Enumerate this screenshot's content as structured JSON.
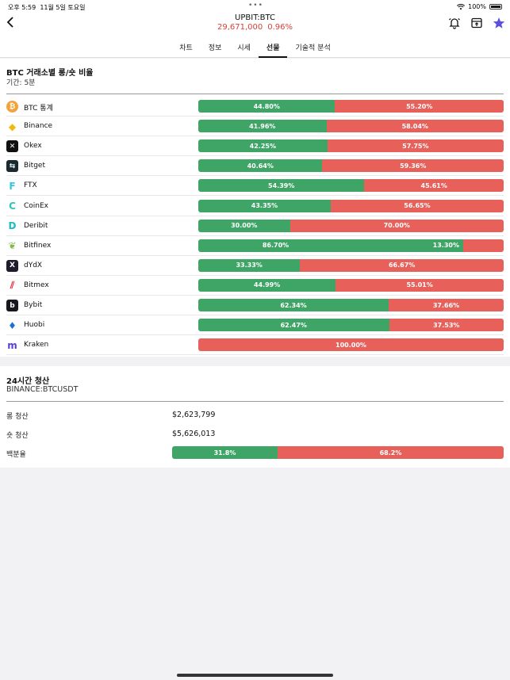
{
  "status_bar": {
    "time": "오후 5:59",
    "date": "11월 5일 토요일",
    "dots": "•••",
    "battery": "100%"
  },
  "header": {
    "title": "UPBIT:BTC",
    "price": "29,671,000",
    "change": "0.96%"
  },
  "tabs": [
    {
      "label": "차트",
      "active": false
    },
    {
      "label": "정보",
      "active": false
    },
    {
      "label": "시세",
      "active": false
    },
    {
      "label": "선물",
      "active": true
    },
    {
      "label": "기술적 분석",
      "active": false
    }
  ],
  "ratio_section": {
    "title": "BTC 거래소별 롱/숏 비율",
    "period": "기간: 5분",
    "rows": [
      {
        "name": "BTC 통계",
        "icon": "bitcoin-icon",
        "icon_color": "#f2a33a",
        "long": 44.8,
        "long_label": "44.80%",
        "short_label": "55.20%"
      },
      {
        "name": "Binance",
        "icon": "binance-icon",
        "icon_color": "#f0b90b",
        "long": 41.96,
        "long_label": "41.96%",
        "short_label": "58.04%"
      },
      {
        "name": "Okex",
        "icon": "okex-icon",
        "icon_color": "#111111",
        "long": 42.25,
        "long_label": "42.25%",
        "short_label": "57.75%"
      },
      {
        "name": "Bitget",
        "icon": "bitget-icon",
        "icon_color": "#1a2a33",
        "long": 40.64,
        "long_label": "40.64%",
        "short_label": "59.36%"
      },
      {
        "name": "FTX",
        "icon": "ftx-icon",
        "icon_color": "#35c6dd",
        "long": 54.39,
        "long_label": "54.39%",
        "short_label": "45.61%"
      },
      {
        "name": "CoinEx",
        "icon": "coinex-icon",
        "icon_color": "#2ec4b6",
        "long": 43.35,
        "long_label": "43.35%",
        "short_label": "56.65%"
      },
      {
        "name": "Deribit",
        "icon": "deribit-icon",
        "icon_color": "#1bbcc2",
        "long": 30.0,
        "long_label": "30.00%",
        "short_label": "70.00%"
      },
      {
        "name": "Bitfinex",
        "icon": "bitfinex-icon",
        "icon_color": "#7dbb42",
        "long": 86.7,
        "long_label": "86.70%",
        "short_label": "13.30%"
      },
      {
        "name": "dYdX",
        "icon": "dydx-icon",
        "icon_color": "#1c1c2c",
        "long": 33.33,
        "long_label": "33.33%",
        "short_label": "66.67%"
      },
      {
        "name": "Bitmex",
        "icon": "bitmex-icon",
        "icon_color": "#e2363f",
        "long": 44.99,
        "long_label": "44.99%",
        "short_label": "55.01%"
      },
      {
        "name": "Bybit",
        "icon": "bybit-icon",
        "icon_color": "#17181e",
        "long": 62.34,
        "long_label": "62.34%",
        "short_label": "37.66%"
      },
      {
        "name": "Huobi",
        "icon": "huobi-icon",
        "icon_color": "#1d6fd6",
        "long": 62.47,
        "long_label": "62.47%",
        "short_label": "37.53%"
      },
      {
        "name": "Kraken",
        "icon": "kraken-icon",
        "icon_color": "#5741d9",
        "long": 0,
        "long_label": "",
        "short_label": "100.00%"
      }
    ]
  },
  "liquidation": {
    "title": "24시간 청산",
    "pair": "BINANCE:BTCUSDT",
    "long_label": "롱 청산",
    "long_value": "$2,623,799",
    "short_label": "숏 청산",
    "short_value": "$5,626,013",
    "percent_label": "백분율",
    "long_pct": 31.8,
    "long_pct_label": "31.8%",
    "short_pct_label": "68.2%"
  },
  "colors": {
    "long": "#3fa566",
    "short": "#e8605a",
    "accent_red": "#d9403a",
    "star": "#5b4fe0"
  }
}
